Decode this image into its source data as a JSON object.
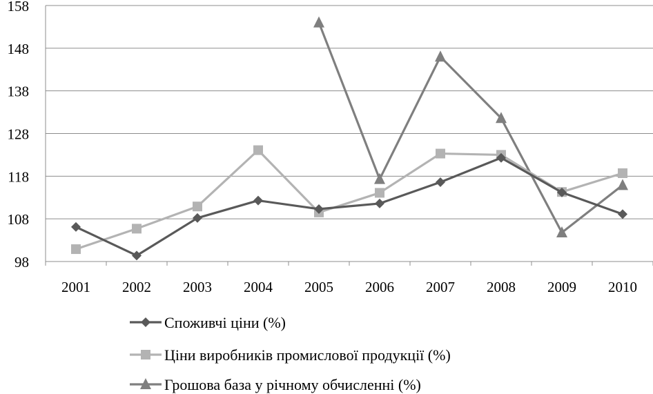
{
  "chart_data": {
    "type": "line",
    "categories": [
      "2001",
      "2002",
      "2003",
      "2004",
      "2005",
      "2006",
      "2007",
      "2008",
      "2009",
      "2010"
    ],
    "yticks": [
      "98",
      "108",
      "118",
      "128",
      "138",
      "148",
      "158"
    ],
    "ylim": [
      98,
      158
    ],
    "grid": true,
    "legend_position": "bottom",
    "series": [
      {
        "name": "Споживчі ціни (%)",
        "marker": "diamond",
        "color": "#595959",
        "values": [
          106.1,
          99.4,
          108.2,
          112.3,
          110.3,
          111.6,
          116.6,
          122.3,
          114.2,
          109.1
        ]
      },
      {
        "name": "Ціни виробників промислової продукції (%)",
        "marker": "square",
        "color": "#b3b3b3",
        "values": [
          100.9,
          105.7,
          110.9,
          124.1,
          109.5,
          114.1,
          123.3,
          123.0,
          114.3,
          118.7
        ]
      },
      {
        "name": "Грошова база у річному обчисленні (%)",
        "marker": "triangle",
        "color": "#7f7f7f",
        "values": [
          null,
          null,
          null,
          null,
          154.0,
          117.3,
          146.0,
          131.6,
          104.8,
          115.9
        ]
      }
    ]
  }
}
